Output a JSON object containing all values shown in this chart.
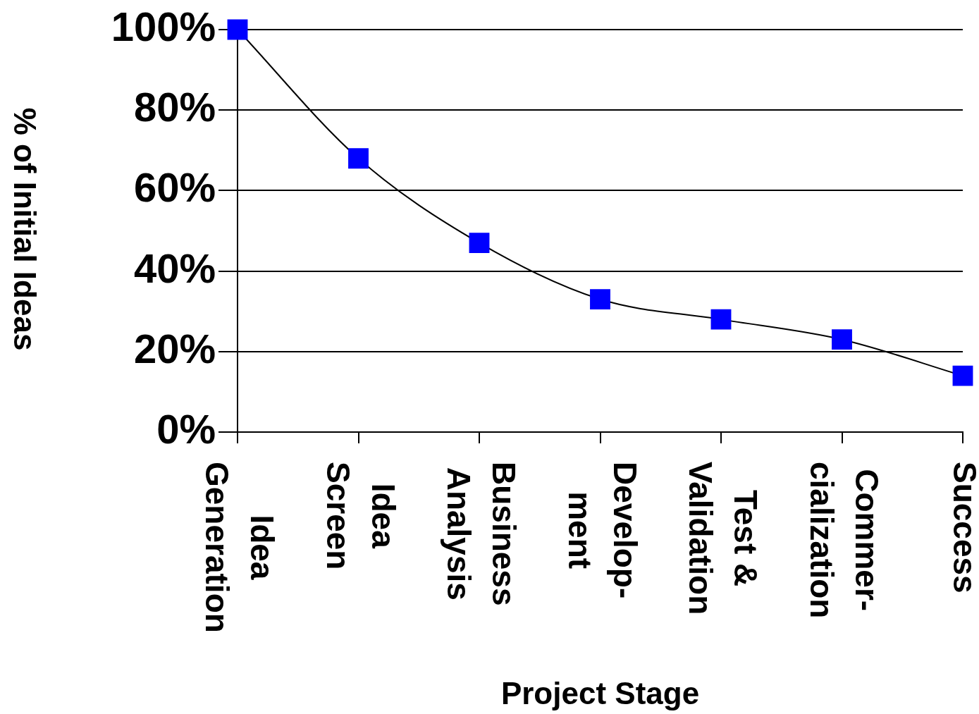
{
  "chart_data": {
    "type": "line",
    "xlabel": "Project Stage",
    "ylabel": "% of Initial Ideas",
    "categories": [
      "Idea\nGeneration",
      "Idea\nScreen",
      "Business\nAnalysis",
      "Develop-\nment",
      "Test &\nValidation",
      "Commer-\ncialization",
      "Success"
    ],
    "series": [
      {
        "color": "#0000ff",
        "values": [
          100,
          68,
          47,
          33,
          28,
          23,
          14
        ]
      }
    ],
    "ylim": [
      0,
      100
    ],
    "yticks": [
      {
        "value": 0,
        "label": "0%"
      },
      {
        "value": 20,
        "label": "20%"
      },
      {
        "value": 40,
        "label": "40%"
      },
      {
        "value": 60,
        "label": "60%"
      },
      {
        "value": 80,
        "label": "80%"
      },
      {
        "value": 100,
        "label": "100%"
      }
    ],
    "grid": "y",
    "marker": "square",
    "line_style": "solid"
  }
}
